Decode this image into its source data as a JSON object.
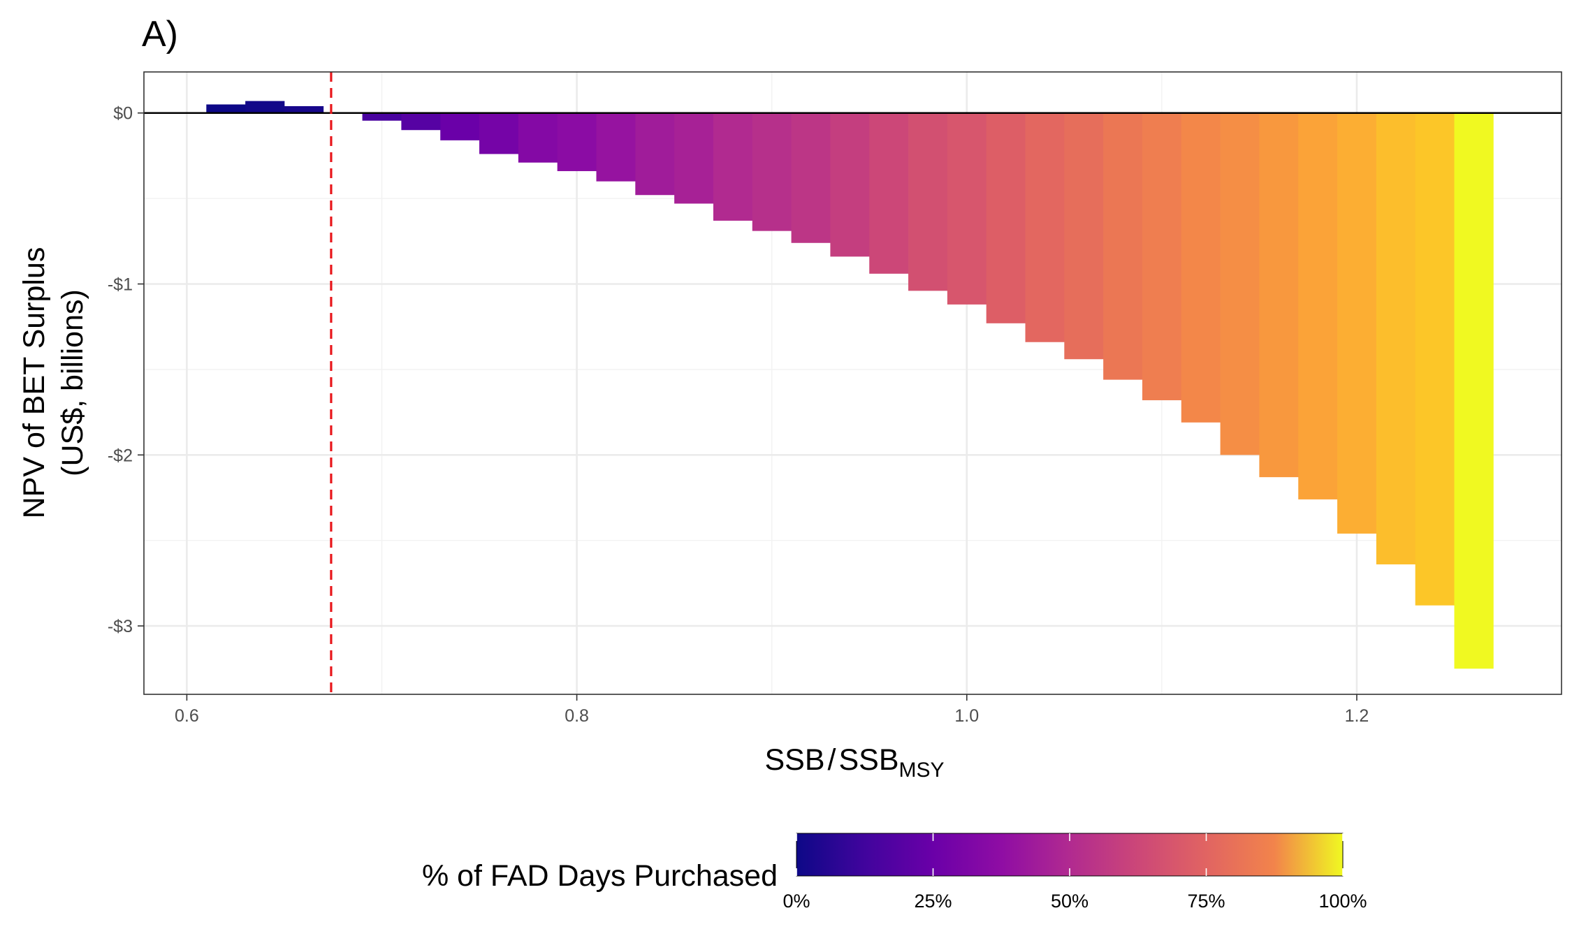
{
  "chart_data": {
    "type": "bar",
    "panel_label": "A)",
    "xlabel_main": "SSB",
    "xlabel_sep": "/",
    "xlabel_denom": "SSB",
    "xlabel_sub": "MSY",
    "ylabel_line1": "NPV of BET Surplus",
    "ylabel_line2": "(US$, billions)",
    "xlim": [
      0.578,
      1.305
    ],
    "ylim": [
      -3.4,
      0.24
    ],
    "x_ticks": [
      {
        "value": 0.6,
        "label": "0.6"
      },
      {
        "value": 0.8,
        "label": "0.8"
      },
      {
        "value": 1.0,
        "label": "1.0"
      },
      {
        "value": 1.2,
        "label": "1.2"
      }
    ],
    "y_ticks": [
      {
        "value": 0,
        "label": "$0"
      },
      {
        "value": -1,
        "label": "-$1"
      },
      {
        "value": -2,
        "label": "-$2"
      },
      {
        "value": -3,
        "label": "-$3"
      }
    ],
    "bar_width": 0.02,
    "reference_line": {
      "x": 0.674,
      "color": "#e8161b",
      "style": "dashed"
    },
    "zero_line": true,
    "grid": true,
    "bars": [
      {
        "x": 0.62,
        "y": 0.05,
        "pct": 0
      },
      {
        "x": 0.64,
        "y": 0.07,
        "pct": 1
      },
      {
        "x": 0.66,
        "y": 0.04,
        "pct": 2
      },
      {
        "x": 0.68,
        "y": 0.005,
        "pct": 4
      },
      {
        "x": 0.7,
        "y": -0.045,
        "pct": 12
      },
      {
        "x": 0.72,
        "y": -0.1,
        "pct": 15
      },
      {
        "x": 0.74,
        "y": -0.16,
        "pct": 20
      },
      {
        "x": 0.76,
        "y": -0.24,
        "pct": 23
      },
      {
        "x": 0.78,
        "y": -0.29,
        "pct": 27
      },
      {
        "x": 0.8,
        "y": -0.34,
        "pct": 29
      },
      {
        "x": 0.82,
        "y": -0.4,
        "pct": 32
      },
      {
        "x": 0.84,
        "y": -0.48,
        "pct": 35
      },
      {
        "x": 0.86,
        "y": -0.53,
        "pct": 37
      },
      {
        "x": 0.88,
        "y": -0.63,
        "pct": 40
      },
      {
        "x": 0.9,
        "y": -0.69,
        "pct": 42
      },
      {
        "x": 0.92,
        "y": -0.76,
        "pct": 44
      },
      {
        "x": 0.94,
        "y": -0.84,
        "pct": 47
      },
      {
        "x": 0.96,
        "y": -0.94,
        "pct": 50
      },
      {
        "x": 0.98,
        "y": -1.04,
        "pct": 53
      },
      {
        "x": 1.0,
        "y": -1.12,
        "pct": 55
      },
      {
        "x": 1.02,
        "y": -1.23,
        "pct": 58
      },
      {
        "x": 1.04,
        "y": -1.34,
        "pct": 61
      },
      {
        "x": 1.06,
        "y": -1.44,
        "pct": 63
      },
      {
        "x": 1.08,
        "y": -1.56,
        "pct": 66
      },
      {
        "x": 1.1,
        "y": -1.68,
        "pct": 68
      },
      {
        "x": 1.12,
        "y": -1.81,
        "pct": 71
      },
      {
        "x": 1.14,
        "y": -2.0,
        "pct": 73
      },
      {
        "x": 1.16,
        "y": -2.13,
        "pct": 76
      },
      {
        "x": 1.18,
        "y": -2.26,
        "pct": 79
      },
      {
        "x": 1.2,
        "y": -2.46,
        "pct": 82
      },
      {
        "x": 1.22,
        "y": -2.64,
        "pct": 86
      },
      {
        "x": 1.24,
        "y": -2.88,
        "pct": 88
      },
      {
        "x": 1.26,
        "y": -3.25,
        "pct": 100
      }
    ],
    "legend": {
      "title": "% of FAD Days Purchased",
      "position": "bottom",
      "colormap": "plasma",
      "ticks": [
        {
          "value": 0,
          "label": "0%"
        },
        {
          "value": 25,
          "label": "25%"
        },
        {
          "value": 50,
          "label": "50%"
        },
        {
          "value": 75,
          "label": "75%"
        },
        {
          "value": 100,
          "label": "100%"
        }
      ]
    }
  }
}
